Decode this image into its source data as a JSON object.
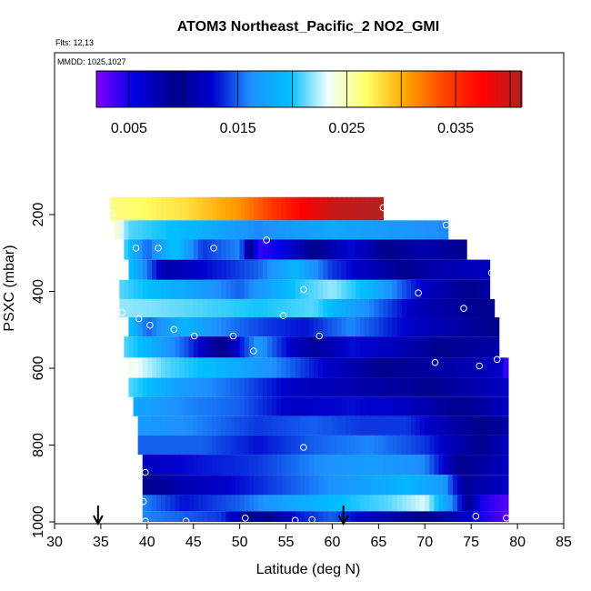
{
  "chart_data": {
    "type": "heatmap",
    "title": "ATOM3 Northeast_Pacific_2 NO2_GMI",
    "info": [
      "Flts: 12,13",
      "MMDD: 1025,1027"
    ],
    "xlabel": "Latitude (deg N)",
    "ylabel": "PSXC (mbar)",
    "xlim": [
      30,
      85
    ],
    "ylim": [
      1000,
      100
    ],
    "xticks": [
      30,
      35,
      40,
      45,
      50,
      55,
      60,
      65,
      70,
      75,
      80,
      85
    ],
    "yticks": [
      200,
      400,
      600,
      800,
      1000
    ],
    "colorbar": {
      "range": [
        0.002,
        0.041
      ],
      "ticks": [
        "0.005",
        "0.015",
        "0.025",
        "0.035"
      ],
      "tick_values": [
        0.005,
        0.015,
        0.025,
        0.035
      ],
      "colors": [
        "#7f00ff",
        "#0000e6",
        "#00008b",
        "#0000cd",
        "#1e90ff",
        "#00bfff",
        "#f0ffff",
        "#ffff66",
        "#ffa500",
        "#ff4500",
        "#ff0000",
        "#b22222"
      ]
    },
    "arrows_lat": [
      34.7,
      61.2
    ],
    "layers": [
      {
        "p": 190,
        "lat0": 36,
        "lat1": 65.5,
        "stops": [
          [
            36,
            0.026
          ],
          [
            44,
            0.028
          ],
          [
            50,
            0.031
          ],
          [
            55,
            0.036
          ],
          [
            60,
            0.04
          ],
          [
            65.5,
            0.041
          ]
        ]
      },
      {
        "p": 240,
        "lat0": 36.5,
        "lat1": 72.5,
        "stops": [
          [
            36.5,
            0.025
          ],
          [
            38,
            0.021
          ],
          [
            45,
            0.019
          ],
          [
            52,
            0.016
          ],
          [
            60,
            0.018
          ],
          [
            66,
            0.017
          ],
          [
            72.5,
            0.016
          ]
        ]
      },
      {
        "p": 290,
        "lat0": 37.5,
        "lat1": 74.5,
        "stops": [
          [
            37.5,
            0.021
          ],
          [
            40,
            0.015
          ],
          [
            43,
            0.02
          ],
          [
            46,
            0.014
          ],
          [
            50,
            0.016
          ],
          [
            52,
            0.004
          ],
          [
            55,
            0.006
          ],
          [
            58,
            0.009
          ],
          [
            62,
            0.013
          ],
          [
            66,
            0.009
          ],
          [
            70,
            0.011
          ],
          [
            74.5,
            0.009
          ]
        ]
      },
      {
        "p": 345,
        "lat0": 38,
        "lat1": 77,
        "stops": [
          [
            38,
            0.02
          ],
          [
            42,
            0.011
          ],
          [
            47,
            0.013
          ],
          [
            52,
            0.015
          ],
          [
            56,
            0.019
          ],
          [
            60,
            0.014
          ],
          [
            65,
            0.011
          ],
          [
            70,
            0.008
          ],
          [
            77,
            0.007
          ]
        ]
      },
      {
        "p": 395,
        "lat0": 37,
        "lat1": 77,
        "stops": [
          [
            37,
            0.021
          ],
          [
            44,
            0.018
          ],
          [
            50,
            0.015
          ],
          [
            56,
            0.02
          ],
          [
            60,
            0.022
          ],
          [
            64,
            0.019
          ],
          [
            70,
            0.012
          ],
          [
            77,
            0.008
          ]
        ]
      },
      {
        "p": 445,
        "lat0": 37,
        "lat1": 77.5,
        "stops": [
          [
            37,
            0.022
          ],
          [
            45,
            0.021
          ],
          [
            52,
            0.02
          ],
          [
            58,
            0.021
          ],
          [
            64,
            0.016
          ],
          [
            70,
            0.011
          ],
          [
            77.5,
            0.009
          ]
        ]
      },
      {
        "p": 490,
        "lat0": 38,
        "lat1": 78,
        "stops": [
          [
            38,
            0.02
          ],
          [
            40,
            0.015
          ],
          [
            44,
            0.019
          ],
          [
            48,
            0.016
          ],
          [
            53,
            0.014
          ],
          [
            57,
            0.013
          ],
          [
            62,
            0.016
          ],
          [
            67,
            0.013
          ],
          [
            72,
            0.011
          ],
          [
            78,
            0.009
          ]
        ]
      },
      {
        "p": 545,
        "lat0": 37.5,
        "lat1": 78,
        "stops": [
          [
            37.5,
            0.021
          ],
          [
            40,
            0.019
          ],
          [
            44,
            0.015
          ],
          [
            48,
            0.009
          ],
          [
            52,
            0.017
          ],
          [
            55,
            0.013
          ],
          [
            58,
            0.01
          ],
          [
            62,
            0.013
          ],
          [
            66,
            0.012
          ],
          [
            72,
            0.009
          ],
          [
            78,
            0.008
          ]
        ]
      },
      {
        "p": 600,
        "lat0": 38,
        "lat1": 79,
        "stops": [
          [
            38,
            0.024
          ],
          [
            42,
            0.021
          ],
          [
            48,
            0.019
          ],
          [
            54,
            0.016
          ],
          [
            60,
            0.012
          ],
          [
            66,
            0.009
          ],
          [
            72,
            0.008
          ],
          [
            78,
            0.007
          ],
          [
            79,
            0.003
          ]
        ]
      },
      {
        "p": 650,
        "lat0": 38,
        "lat1": 79,
        "stops": [
          [
            38,
            0.021
          ],
          [
            44,
            0.017
          ],
          [
            50,
            0.015
          ],
          [
            56,
            0.012
          ],
          [
            62,
            0.011
          ],
          [
            68,
            0.01
          ],
          [
            74,
            0.008
          ],
          [
            79,
            0.007
          ]
        ]
      },
      {
        "p": 700,
        "lat0": 38.5,
        "lat1": 79,
        "stops": [
          [
            38.5,
            0.018
          ],
          [
            44,
            0.016
          ],
          [
            50,
            0.015
          ],
          [
            56,
            0.012
          ],
          [
            62,
            0.013
          ],
          [
            68,
            0.012
          ],
          [
            74,
            0.009
          ],
          [
            79,
            0.007
          ]
        ]
      },
      {
        "p": 750,
        "lat0": 39,
        "lat1": 79,
        "stops": [
          [
            39,
            0.017
          ],
          [
            45,
            0.016
          ],
          [
            52,
            0.014
          ],
          [
            58,
            0.015
          ],
          [
            63,
            0.014
          ],
          [
            68,
            0.014
          ],
          [
            74,
            0.01
          ],
          [
            79,
            0.008
          ]
        ]
      },
      {
        "p": 800,
        "lat0": 39,
        "lat1": 79,
        "stops": [
          [
            39,
            0.015
          ],
          [
            46,
            0.015
          ],
          [
            52,
            0.013
          ],
          [
            58,
            0.015
          ],
          [
            64,
            0.016
          ],
          [
            70,
            0.014
          ],
          [
            76,
            0.009
          ],
          [
            79,
            0.007
          ]
        ]
      },
      {
        "p": 850,
        "lat0": 39.5,
        "lat1": 79,
        "stops": [
          [
            39.5,
            0.012
          ],
          [
            45,
            0.013
          ],
          [
            52,
            0.014
          ],
          [
            58,
            0.016
          ],
          [
            64,
            0.017
          ],
          [
            70,
            0.016
          ],
          [
            74,
            0.009
          ],
          [
            79,
            0.007
          ]
        ]
      },
      {
        "p": 905,
        "lat0": 39.5,
        "lat1": 79,
        "stops": [
          [
            39.5,
            0.009
          ],
          [
            44,
            0.011
          ],
          [
            50,
            0.013
          ],
          [
            56,
            0.015
          ],
          [
            62,
            0.017
          ],
          [
            68,
            0.019
          ],
          [
            72,
            0.017
          ],
          [
            75,
            0.008
          ],
          [
            79,
            0.007
          ]
        ]
      },
      {
        "p": 955,
        "lat0": 39.5,
        "lat1": 79,
        "stops": [
          [
            39.5,
            0.016
          ],
          [
            44,
            0.013
          ],
          [
            50,
            0.015
          ],
          [
            56,
            0.018
          ],
          [
            62,
            0.02
          ],
          [
            66,
            0.021
          ],
          [
            70,
            0.023
          ],
          [
            73,
            0.016
          ],
          [
            76,
            0.005
          ],
          [
            79,
            0.003
          ]
        ]
      },
      {
        "p": 990,
        "lat0": 39.5,
        "lat1": 79,
        "stops": [
          [
            39.5,
            0.016
          ],
          [
            44,
            0.015
          ],
          [
            48,
            0.014
          ],
          [
            50,
            0.011
          ],
          [
            52,
            0.008
          ],
          [
            56,
            0.013
          ],
          [
            60,
            0.015
          ],
          [
            62,
            0.013
          ],
          [
            66,
            0.011
          ],
          [
            70,
            0.009
          ],
          [
            74,
            0.007
          ],
          [
            76,
            0.005
          ],
          [
            79,
            0.003
          ]
        ]
      }
    ],
    "markers": [
      {
        "lat": 65.5,
        "p": 182
      },
      {
        "lat": 72.3,
        "p": 227
      },
      {
        "lat": 36.2,
        "p": 197
      },
      {
        "lat": 38.8,
        "p": 287
      },
      {
        "lat": 41.2,
        "p": 287
      },
      {
        "lat": 47.2,
        "p": 287
      },
      {
        "lat": 52.9,
        "p": 266
      },
      {
        "lat": 77.2,
        "p": 352
      },
      {
        "lat": 69.3,
        "p": 404
      },
      {
        "lat": 56.9,
        "p": 395
      },
      {
        "lat": 37.3,
        "p": 455
      },
      {
        "lat": 39.1,
        "p": 471
      },
      {
        "lat": 40.3,
        "p": 488
      },
      {
        "lat": 42.9,
        "p": 499
      },
      {
        "lat": 45.1,
        "p": 516
      },
      {
        "lat": 49.3,
        "p": 516
      },
      {
        "lat": 54.7,
        "p": 463
      },
      {
        "lat": 58.6,
        "p": 516
      },
      {
        "lat": 51.5,
        "p": 555
      },
      {
        "lat": 74.2,
        "p": 444
      },
      {
        "lat": 71.1,
        "p": 585
      },
      {
        "lat": 75.9,
        "p": 594
      },
      {
        "lat": 77.8,
        "p": 577
      },
      {
        "lat": 56.9,
        "p": 806
      },
      {
        "lat": 39.8,
        "p": 871
      },
      {
        "lat": 39.6,
        "p": 947
      },
      {
        "lat": 39.8,
        "p": 998
      },
      {
        "lat": 44.2,
        "p": 998
      },
      {
        "lat": 50.6,
        "p": 990
      },
      {
        "lat": 56,
        "p": 996
      },
      {
        "lat": 57.8,
        "p": 994
      },
      {
        "lat": 75.5,
        "p": 985
      },
      {
        "lat": 78.8,
        "p": 990
      }
    ]
  }
}
